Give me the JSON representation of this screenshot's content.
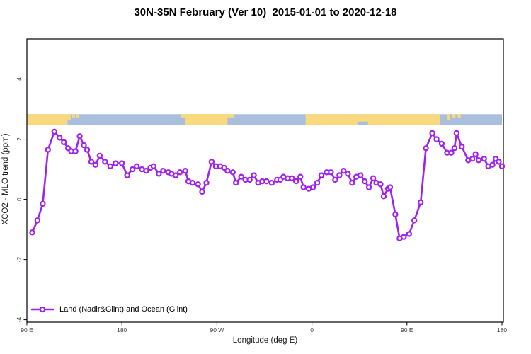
{
  "chart_data": {
    "type": "line",
    "title": "30N-35N February (Ver 10)  2015-01-01 to 2020-12-18",
    "xlabel": "Longitude (deg E)",
    "ylabel": "XCO2 - MLO trend (ppm)",
    "xlim": [
      90,
      540
    ],
    "ylim": [
      -4.08,
      5.33
    ],
    "grid": "off",
    "legend_position": "bottom-left",
    "x_ticks": [
      {
        "value": 90,
        "label": "90 E"
      },
      {
        "value": 180,
        "label": "180"
      },
      {
        "value": 270,
        "label": "90 W"
      },
      {
        "value": 360,
        "label": "0"
      },
      {
        "value": 450,
        "label": "90 E"
      },
      {
        "value": 540,
        "label": "180"
      }
    ],
    "y_ticks": [
      {
        "value": -4,
        "label": "-4"
      },
      {
        "value": -2,
        "label": "-2"
      },
      {
        "value": 0,
        "label": "0"
      },
      {
        "value": 2,
        "label": "2"
      },
      {
        "value": 4,
        "label": "4"
      }
    ],
    "map_strip": {
      "description": "land/ocean strip for 30N-35N drawn across the longitude axis",
      "value_top": 2.83,
      "value_bottom": 2.47,
      "land_color": "#FAD97E",
      "ocean_color": "#A9BFDD",
      "land_segments": [
        {
          "from": 90,
          "to": 128.5,
          "band": "full"
        },
        {
          "from": 128.5,
          "to": 131.5,
          "band": "tophalf"
        },
        {
          "from": 133,
          "to": 135.5,
          "band": "top"
        },
        {
          "from": 137,
          "to": 139,
          "band": "top"
        },
        {
          "from": 236,
          "to": 286,
          "band": "top"
        },
        {
          "from": 240,
          "to": 280,
          "band": "full"
        },
        {
          "from": 354,
          "to": 481,
          "band": "full"
        },
        {
          "from": 488,
          "to": 491,
          "band": "tophalf"
        },
        {
          "from": 493,
          "to": 496,
          "band": "top"
        },
        {
          "from": 498,
          "to": 501,
          "band": "top"
        }
      ],
      "ocean_notches": [
        {
          "from": 403,
          "to": 413,
          "band": "bottom"
        }
      ]
    },
    "series": [
      {
        "name": "Land (Nadir&Glint) and Ocean (Glint)",
        "color": "#A020F0",
        "marker": "open-circle",
        "points": [
          [
            95,
            -1.1
          ],
          [
            100,
            -0.7
          ],
          [
            105,
            -0.15
          ],
          [
            110,
            1.65
          ],
          [
            116,
            2.25
          ],
          [
            121,
            2.05
          ],
          [
            125,
            1.9
          ],
          [
            129,
            1.7
          ],
          [
            132,
            1.6
          ],
          [
            136,
            1.6
          ],
          [
            140,
            2.1
          ],
          [
            144,
            1.8
          ],
          [
            147,
            1.65
          ],
          [
            151,
            1.25
          ],
          [
            155,
            1.15
          ],
          [
            159,
            1.45
          ],
          [
            164,
            1.25
          ],
          [
            169,
            1.1
          ],
          [
            174,
            1.2
          ],
          [
            180,
            1.2
          ],
          [
            185,
            0.8
          ],
          [
            190,
            1.0
          ],
          [
            194,
            1.1
          ],
          [
            199,
            1.0
          ],
          [
            203,
            0.95
          ],
          [
            207,
            1.05
          ],
          [
            210,
            1.1
          ],
          [
            215,
            0.85
          ],
          [
            219,
            0.95
          ],
          [
            224,
            0.9
          ],
          [
            227,
            0.85
          ],
          [
            231,
            0.8
          ],
          [
            235,
            0.9
          ],
          [
            240,
            0.95
          ],
          [
            243,
            0.6
          ],
          [
            247,
            0.55
          ],
          [
            252,
            0.5
          ],
          [
            256,
            0.25
          ],
          [
            260,
            0.55
          ],
          [
            265,
            1.25
          ],
          [
            269,
            1.1
          ],
          [
            273,
            1.1
          ],
          [
            277,
            1.05
          ],
          [
            280,
            0.95
          ],
          [
            285,
            0.9
          ],
          [
            288,
            0.55
          ],
          [
            293,
            0.75
          ],
          [
            297,
            0.65
          ],
          [
            301,
            0.65
          ],
          [
            305,
            0.8
          ],
          [
            309,
            0.55
          ],
          [
            313,
            0.6
          ],
          [
            317,
            0.6
          ],
          [
            322,
            0.55
          ],
          [
            327,
            0.65
          ],
          [
            330,
            0.65
          ],
          [
            333,
            0.75
          ],
          [
            337,
            0.7
          ],
          [
            341,
            0.7
          ],
          [
            345,
            0.6
          ],
          [
            349,
            0.75
          ],
          [
            352,
            0.4
          ],
          [
            357,
            0.35
          ],
          [
            361,
            0.4
          ],
          [
            365,
            0.55
          ],
          [
            369,
            0.8
          ],
          [
            374,
            0.9
          ],
          [
            378,
            0.9
          ],
          [
            382,
            0.65
          ],
          [
            386,
            0.8
          ],
          [
            390,
            0.95
          ],
          [
            394,
            0.85
          ],
          [
            398,
            0.55
          ],
          [
            402,
            0.75
          ],
          [
            406,
            0.8
          ],
          [
            410,
            0.6
          ],
          [
            414,
            0.4
          ],
          [
            418,
            0.7
          ],
          [
            421,
            0.55
          ],
          [
            425,
            0.5
          ],
          [
            428,
            0.1
          ],
          [
            432,
            0.35
          ],
          [
            434,
            0.4
          ],
          [
            439,
            -0.5
          ],
          [
            443,
            -1.3
          ],
          [
            447,
            -1.25
          ],
          [
            452,
            -1.15
          ],
          [
            457,
            -0.7
          ],
          [
            463,
            -0.1
          ],
          [
            468,
            1.7
          ],
          [
            474,
            2.2
          ],
          [
            478,
            2.0
          ],
          [
            483,
            1.85
          ],
          [
            488,
            1.55
          ],
          [
            492,
            1.55
          ],
          [
            495,
            1.7
          ],
          [
            497,
            2.2
          ],
          [
            502,
            1.75
          ],
          [
            508,
            1.3
          ],
          [
            512,
            1.35
          ],
          [
            515,
            1.5
          ],
          [
            518,
            1.3
          ],
          [
            523,
            1.35
          ],
          [
            527,
            1.1
          ],
          [
            531,
            1.15
          ],
          [
            534,
            1.35
          ],
          [
            537,
            1.25
          ],
          [
            540,
            1.1
          ]
        ]
      }
    ]
  },
  "style": {
    "axis_color": "#000000",
    "tick_text_color": "#3a3a3a"
  }
}
